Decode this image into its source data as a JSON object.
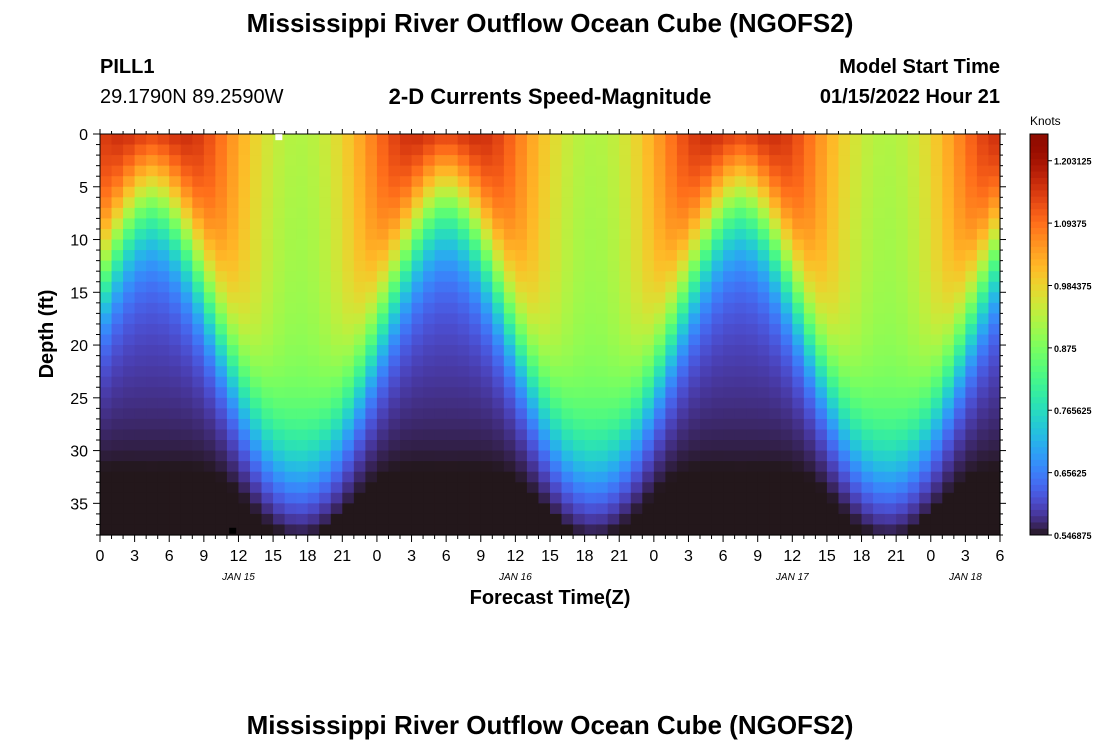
{
  "header": {
    "title": "Mississippi River Outflow Ocean Cube (NGOFS2)",
    "station_id": "PILL1",
    "station_coords": "29.1790N  89.2590W",
    "subtitle": "2-D Currents Speed-Magnitude",
    "model_start_label": "Model Start Time",
    "model_start_value": "01/15/2022 Hour 21"
  },
  "footer": {
    "repeated_title": "Mississippi River Outflow Ocean Cube (NGOFS2)"
  },
  "colors": {
    "background": "#ffffff",
    "marker_white": "#ffffff",
    "marker_black": "#000000"
  },
  "chart_data": {
    "type": "heatmap",
    "colormap": "turbo",
    "xlabel": "Forecast Time(Z)",
    "ylabel": "Depth (ft)",
    "x_unit": "hours from 00Z Jan 15 2022",
    "x_range": [
      0,
      78
    ],
    "x_ticks": [
      0,
      3,
      6,
      9,
      12,
      15,
      18,
      21,
      24,
      27,
      30,
      33,
      36,
      39,
      42,
      45,
      48,
      51,
      54,
      57,
      60,
      63,
      66,
      69,
      72,
      75,
      78
    ],
    "x_tick_labels": [
      "0",
      "3",
      "6",
      "9",
      "12",
      "15",
      "18",
      "21",
      "0",
      "3",
      "6",
      "9",
      "12",
      "15",
      "18",
      "21",
      "0",
      "3",
      "6",
      "9",
      "12",
      "15",
      "18",
      "21",
      "0",
      "3",
      "6"
    ],
    "date_labels": [
      {
        "x": 12,
        "label": "JAN 15"
      },
      {
        "x": 36,
        "label": "JAN 16"
      },
      {
        "x": 60,
        "label": "JAN 17"
      },
      {
        "x": 75,
        "label": "JAN 18"
      }
    ],
    "y_range": [
      0,
      38
    ],
    "y_inverted": true,
    "y_ticks": [
      0,
      5,
      10,
      15,
      20,
      25,
      30,
      35
    ],
    "colorbar": {
      "label": "Knots",
      "min": 0.546875,
      "max": 1.25,
      "tick_values": [
        0.546875,
        0.65625,
        0.765625,
        0.875,
        0.984375,
        1.09375,
        1.203125
      ],
      "tick_labels": [
        "0.546875",
        "0.65625",
        "0.765625",
        "0.875",
        "0.984375",
        "1.09375",
        "1.203125"
      ]
    },
    "grid_resolution": {
      "x_cells": 78,
      "y_cells": 38
    },
    "field_model": {
      "base_knots": 0.55,
      "amplitude_knots": 0.68,
      "tidal_period_hours": 25.5,
      "peak_hours": [
        4.5,
        30.0,
        55.5,
        81.0
      ],
      "minimum_hours": [
        11.5,
        42.5,
        67.5
      ],
      "surface_max_knots": 1.25,
      "bottom_min_knots": 0.55
    },
    "markers": [
      {
        "x": 15.5,
        "y": 0.3,
        "color": "white"
      },
      {
        "x": 11.5,
        "y": 37.6,
        "color": "black"
      }
    ]
  }
}
